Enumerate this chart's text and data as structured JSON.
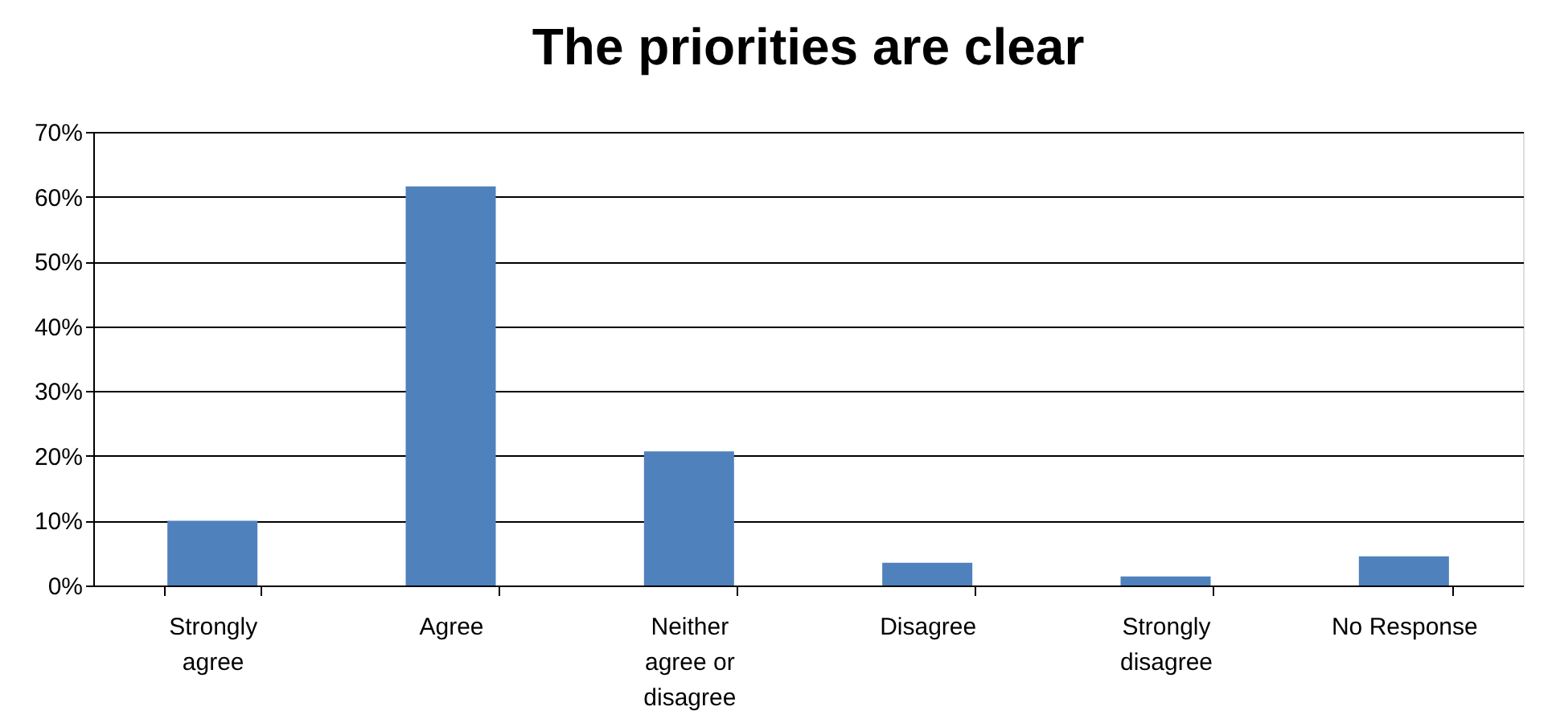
{
  "chart_data": {
    "type": "bar",
    "title": "The priorities are clear",
    "categories": [
      "Strongly agree",
      "Agree",
      "Neither agree or disagree",
      "Disagree",
      "Strongly disagree",
      "No Response"
    ],
    "values": [
      10,
      61.6,
      20.7,
      3.5,
      1.4,
      4.5
    ],
    "color": "#4f81bd",
    "ylim": [
      0,
      70
    ],
    "yticks": [
      {
        "value": 0,
        "label": "0%"
      },
      {
        "value": 10,
        "label": "10%"
      },
      {
        "value": 20,
        "label": "20%"
      },
      {
        "value": 30,
        "label": "30%"
      },
      {
        "value": 40,
        "label": "40%"
      },
      {
        "value": 50,
        "label": "50%"
      },
      {
        "value": 60,
        "label": "60%"
      },
      {
        "value": 70,
        "label": "70%"
      }
    ],
    "grid": "y"
  }
}
